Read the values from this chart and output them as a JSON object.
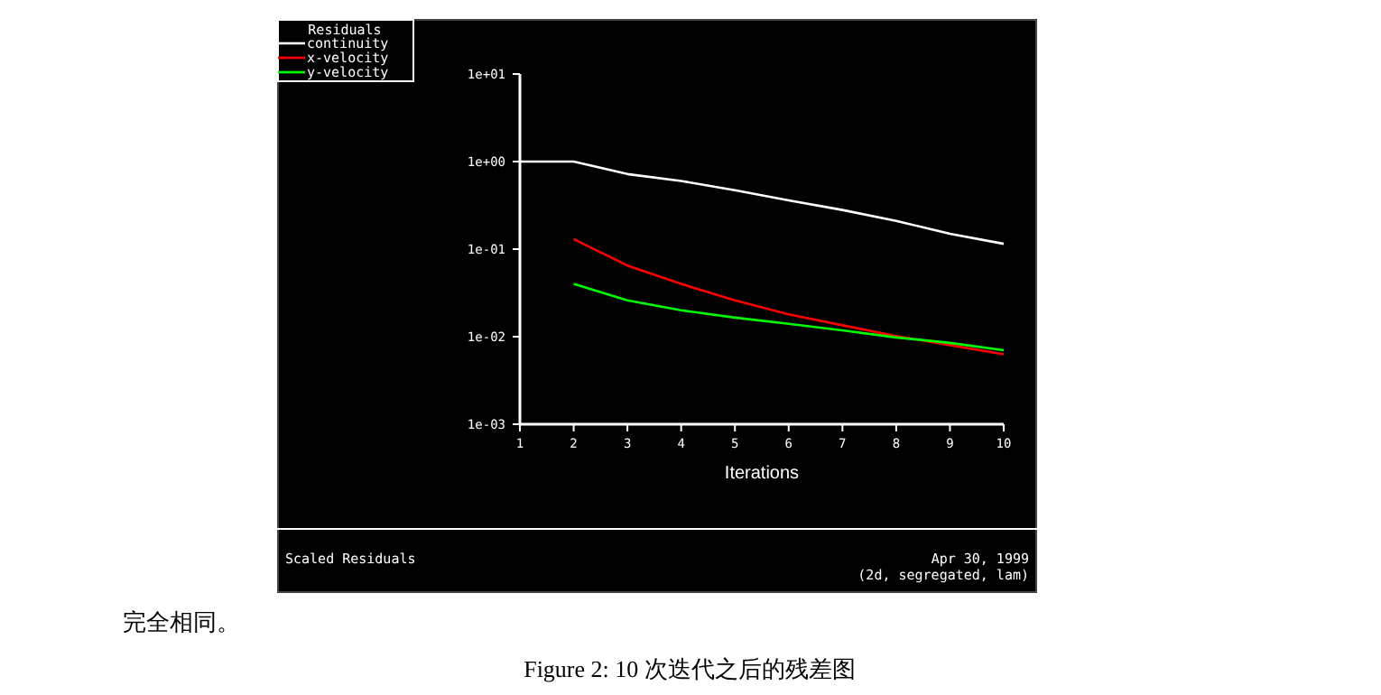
{
  "chart_data": {
    "type": "line",
    "legend_title": "Residuals",
    "xlabel": "Iterations",
    "log": "y",
    "legend": "top left",
    "grid": false,
    "xlim": [
      1,
      10
    ],
    "xticks": [
      1,
      2,
      3,
      4,
      5,
      6,
      7,
      8,
      9,
      10
    ],
    "ylim": [
      0.001,
      10
    ],
    "yticks": [
      {
        "value": 10,
        "label": "1e+01"
      },
      {
        "value": 1,
        "label": "1e+00"
      },
      {
        "value": 0.1,
        "label": "1e-01"
      },
      {
        "value": 0.01,
        "label": "1e-02"
      },
      {
        "value": 0.001,
        "label": "1e-03"
      }
    ],
    "series": [
      {
        "name": "continuity",
        "color": "#ffffff",
        "x": [
          1,
          2,
          3,
          4,
          5,
          6,
          7,
          8,
          9,
          10
        ],
        "values": [
          1,
          1,
          0.72,
          0.6,
          0.47,
          0.36,
          0.28,
          0.21,
          0.15,
          0.115
        ]
      },
      {
        "name": "x-velocity",
        "color": "#ff0000",
        "x": [
          2,
          3,
          4,
          5,
          6,
          7,
          8,
          9,
          10
        ],
        "values": [
          0.13,
          0.065,
          0.04,
          0.026,
          0.018,
          0.0135,
          0.0102,
          0.008,
          0.0063
        ]
      },
      {
        "name": "y-velocity",
        "color": "#00ff00",
        "x": [
          2,
          3,
          4,
          5,
          6,
          7,
          8,
          9,
          10
        ],
        "values": [
          0.04,
          0.026,
          0.02,
          0.0165,
          0.014,
          0.0118,
          0.0098,
          0.0085,
          0.007
        ]
      }
    ],
    "annotations": [
      "Scaled Residuals",
      "Apr 30, 1999",
      "(2d, segregated, lam)",
      "完全相同。",
      "Figure 2: 10 次迭代之后的残差图"
    ]
  }
}
